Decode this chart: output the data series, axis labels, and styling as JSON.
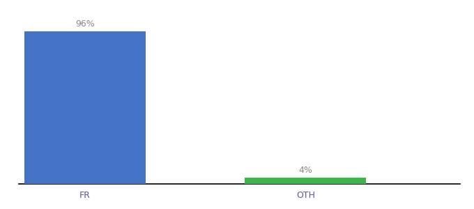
{
  "categories": [
    "FR",
    "OTH"
  ],
  "values": [
    96,
    4
  ],
  "bar_colors": [
    "#4472c4",
    "#3cb54a"
  ],
  "value_labels": [
    "96%",
    "4%"
  ],
  "ylim": [
    0,
    105
  ],
  "background_color": "#ffffff",
  "label_fontsize": 9,
  "tick_fontsize": 9,
  "bar_width": 0.55,
  "figsize": [
    6.8,
    3.0
  ],
  "dpi": 100,
  "xlim": [
    -0.3,
    1.7
  ],
  "label_color": "#888888",
  "tick_color": "#5555aa"
}
